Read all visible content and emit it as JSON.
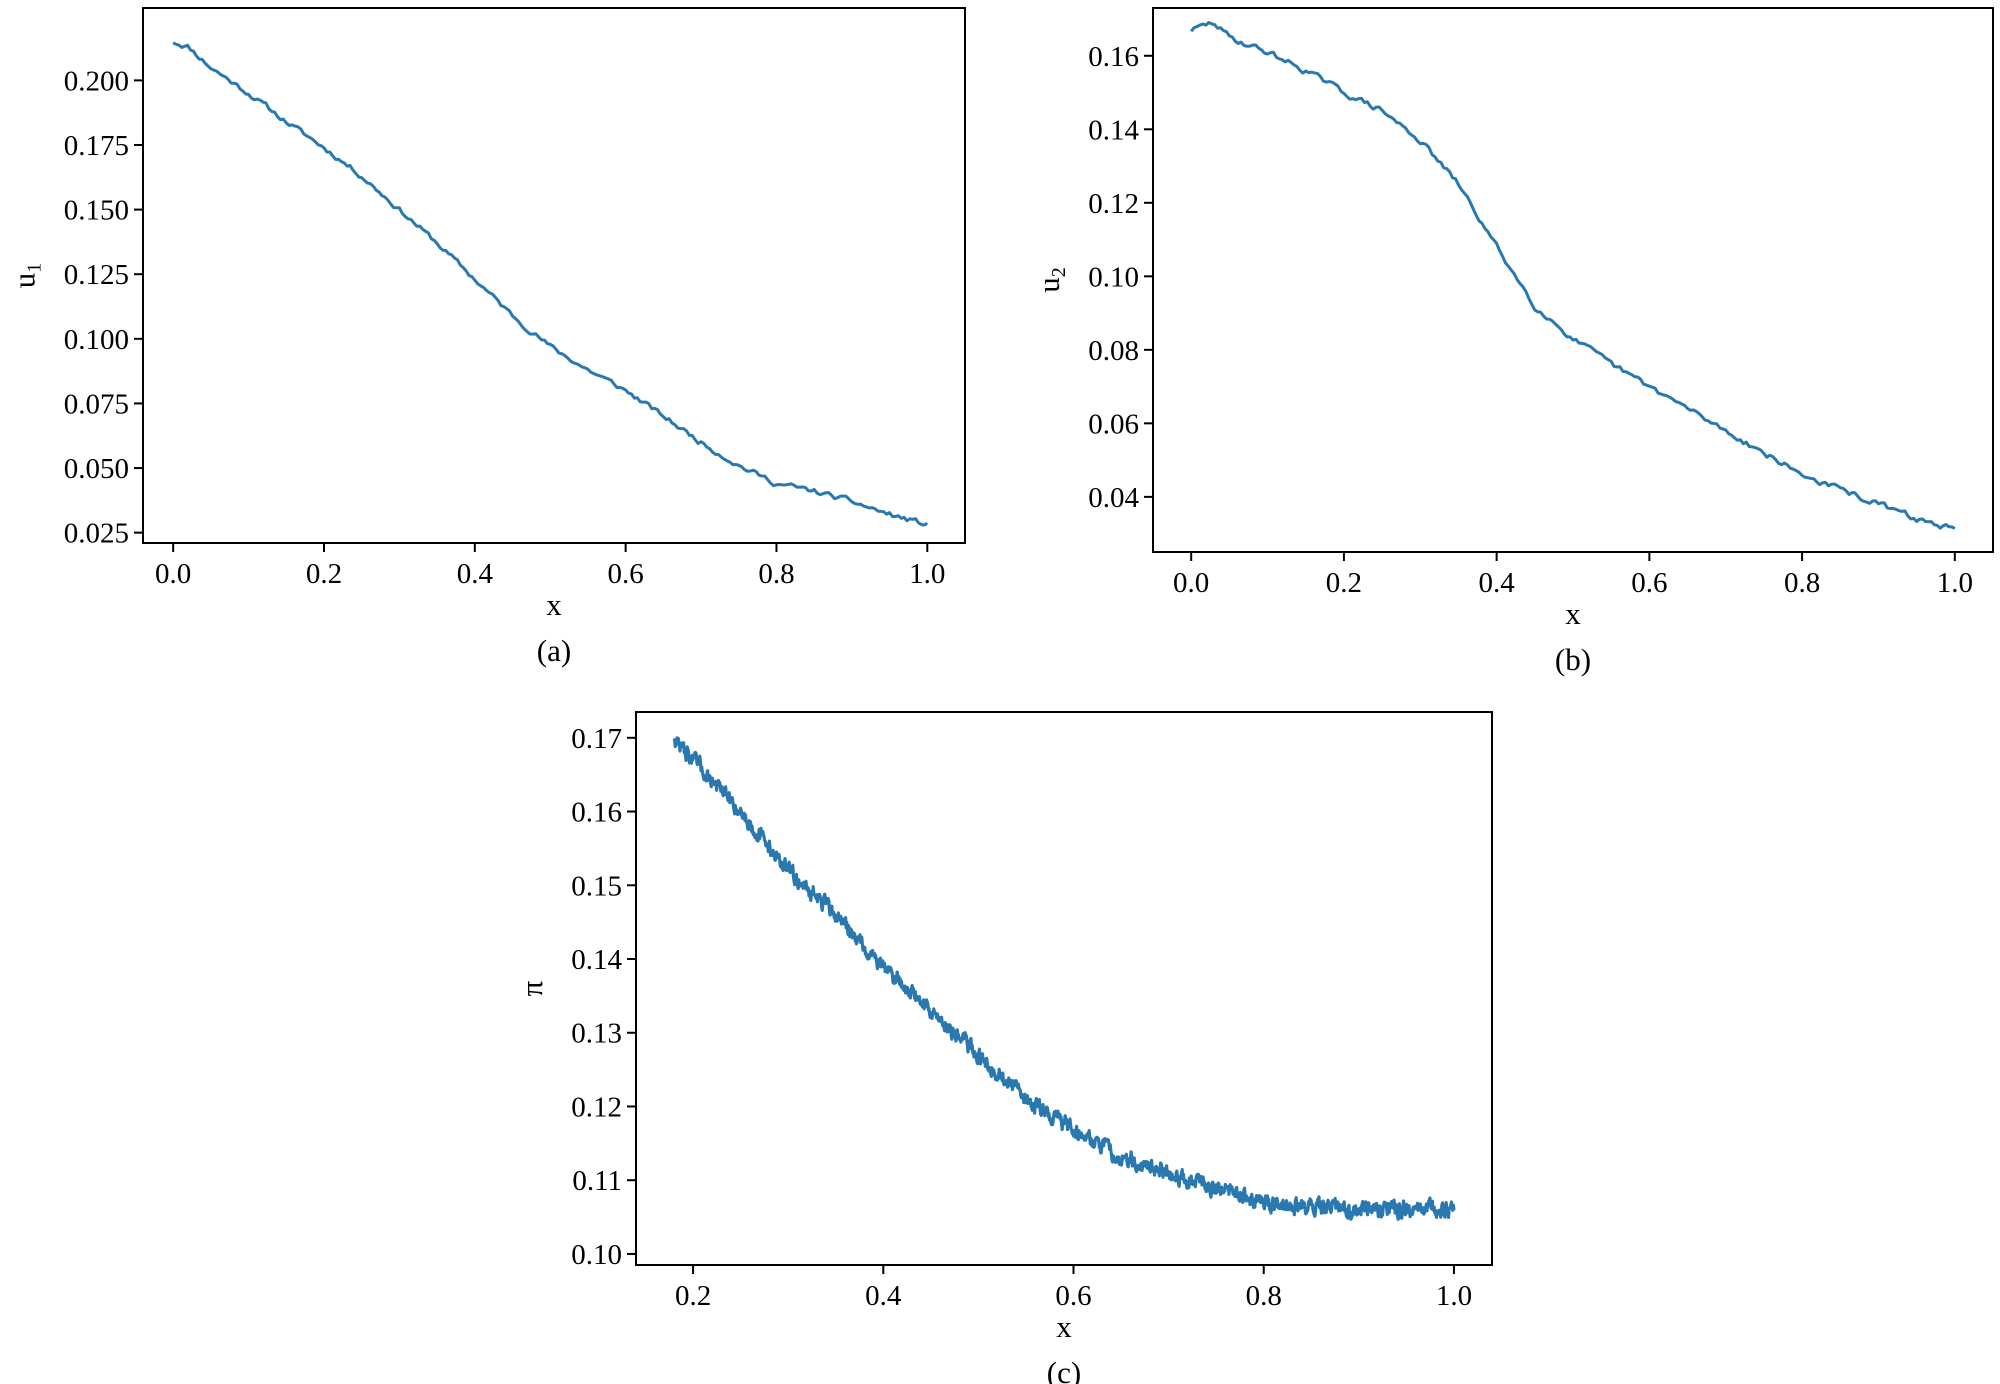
{
  "chart_data": [
    {
      "type": "line",
      "caption": "(a)",
      "xlabel": "x",
      "ylabel": "u",
      "ylabel_sub": "1",
      "xlim": [
        -0.04,
        1.05
      ],
      "ylim": [
        0.021,
        0.228
      ],
      "xticks": [
        0.0,
        0.2,
        0.4,
        0.6,
        0.8,
        1.0
      ],
      "xtick_labels": [
        "0.0",
        "0.2",
        "0.4",
        "0.6",
        "0.8",
        "1.0"
      ],
      "yticks": [
        0.025,
        0.05,
        0.075,
        0.1,
        0.125,
        0.15,
        0.175,
        0.2
      ],
      "ytick_labels": [
        "0.025",
        "0.050",
        "0.075",
        "0.100",
        "0.125",
        "0.150",
        "0.175",
        "0.200"
      ],
      "line_color": "#2a78b0",
      "series": [
        {
          "x": [
            0.0,
            0.02,
            0.05,
            0.1,
            0.15,
            0.2,
            0.25,
            0.3,
            0.35,
            0.4,
            0.45,
            0.5,
            0.55,
            0.6,
            0.65,
            0.7,
            0.75,
            0.8,
            0.85,
            0.9,
            0.95,
            1.0
          ],
          "y": [
            0.215,
            0.213,
            0.205,
            0.195,
            0.184,
            0.174,
            0.163,
            0.15,
            0.137,
            0.123,
            0.109,
            0.097,
            0.088,
            0.08,
            0.07,
            0.06,
            0.051,
            0.044,
            0.041,
            0.037,
            0.032,
            0.028
          ]
        }
      ]
    },
    {
      "type": "line",
      "caption": "(b)",
      "xlabel": "x",
      "ylabel": "u",
      "ylabel_sub": "2",
      "xlim": [
        -0.05,
        1.05
      ],
      "ylim": [
        0.025,
        0.173
      ],
      "xticks": [
        0.0,
        0.2,
        0.4,
        0.6,
        0.8,
        1.0
      ],
      "xtick_labels": [
        "0.0",
        "0.2",
        "0.4",
        "0.6",
        "0.8",
        "1.0"
      ],
      "yticks": [
        0.04,
        0.06,
        0.08,
        0.1,
        0.12,
        0.14,
        0.16
      ],
      "ytick_labels": [
        "0.04",
        "0.06",
        "0.08",
        "0.10",
        "0.12",
        "0.14",
        "0.16"
      ],
      "line_color": "#2a78b0",
      "series": [
        {
          "x": [
            0.0,
            0.03,
            0.05,
            0.1,
            0.15,
            0.2,
            0.25,
            0.3,
            0.35,
            0.4,
            0.45,
            0.5,
            0.55,
            0.6,
            0.65,
            0.7,
            0.75,
            0.8,
            0.85,
            0.9,
            0.95,
            1.0
          ],
          "y": [
            0.167,
            0.169,
            0.165,
            0.161,
            0.156,
            0.15,
            0.145,
            0.137,
            0.125,
            0.108,
            0.092,
            0.083,
            0.076,
            0.07,
            0.064,
            0.058,
            0.052,
            0.046,
            0.042,
            0.038,
            0.034,
            0.031
          ]
        }
      ]
    },
    {
      "type": "line",
      "caption": "(c)",
      "xlabel": "x",
      "ylabel": "π",
      "xlim": [
        0.14,
        1.04
      ],
      "ylim": [
        0.0985,
        0.1735
      ],
      "xticks": [
        0.2,
        0.4,
        0.6,
        0.8,
        1.0
      ],
      "xtick_labels": [
        "0.2",
        "0.4",
        "0.6",
        "0.8",
        "1.0"
      ],
      "yticks": [
        0.1,
        0.11,
        0.12,
        0.13,
        0.14,
        0.15,
        0.16,
        0.17
      ],
      "ytick_labels": [
        "0.10",
        "0.11",
        "0.12",
        "0.13",
        "0.14",
        "0.15",
        "0.16",
        "0.17"
      ],
      "line_color": "#2a78b0",
      "series": [
        {
          "x": [
            0.18,
            0.2,
            0.25,
            0.3,
            0.35,
            0.4,
            0.45,
            0.5,
            0.55,
            0.6,
            0.65,
            0.7,
            0.75,
            0.8,
            0.85,
            0.9,
            0.95,
            1.0
          ],
          "y": [
            0.17,
            0.167,
            0.16,
            0.152,
            0.146,
            0.139,
            0.133,
            0.127,
            0.121,
            0.117,
            0.113,
            0.111,
            0.109,
            0.107,
            0.1065,
            0.106,
            0.106,
            0.106
          ]
        }
      ]
    }
  ]
}
